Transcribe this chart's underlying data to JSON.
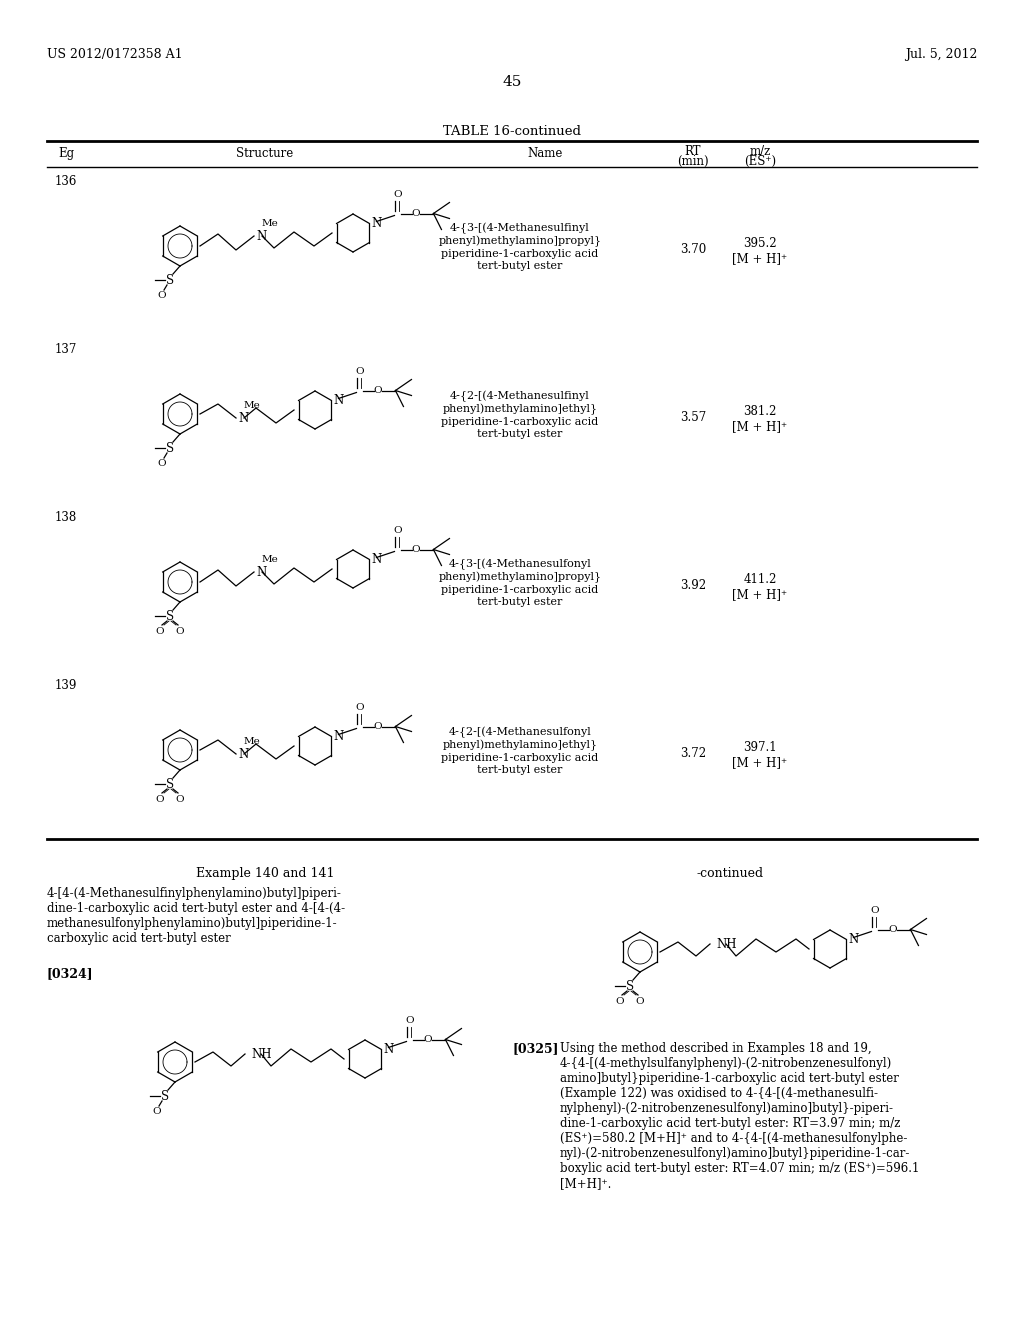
{
  "page_header_left": "US 2012/0172358 A1",
  "page_header_right": "Jul. 5, 2012",
  "page_number": "45",
  "table_title": "TABLE 16-continued",
  "rows": [
    {
      "eg": "136",
      "name": "4-{3-[(4-Methanesulfinyl\nphenyl)methylamino]propyl}\npiperidine-1-carboxylic acid\ntert-butyl ester",
      "rt": "3.70",
      "mz": "395.2\n[M + H]⁺",
      "sulfonyl": false,
      "chain": "propyl"
    },
    {
      "eg": "137",
      "name": "4-{2-[(4-Methanesulfinyl\nphenyl)methylamino]ethyl}\npiperidine-1-carboxylic acid\ntert-butyl ester",
      "rt": "3.57",
      "mz": "381.2\n[M + H]⁺",
      "sulfonyl": false,
      "chain": "ethyl"
    },
    {
      "eg": "138",
      "name": "4-{3-[(4-Methanesulfonyl\nphenyl)methylamino]propyl}\npiperidine-1-carboxylic acid\ntert-butyl ester",
      "rt": "3.92",
      "mz": "411.2\n[M + H]⁺",
      "sulfonyl": true,
      "chain": "propyl"
    },
    {
      "eg": "139",
      "name": "4-{2-[(4-Methanesulfonyl\nphenyl)methylamino]ethyl}\npiperidine-1-carboxylic acid\ntert-butyl ester",
      "rt": "3.72",
      "mz": "397.1\n[M + H]⁺",
      "sulfonyl": true,
      "chain": "ethyl"
    }
  ],
  "example_section_title": "Example 140 and 141",
  "example_compound_name": "4-[4-(4-Methanesulfinylphenylamino)butyl]piperi-\ndine-1-carboxylic acid tert-butyl ester and 4-[4-(4-\nmethanesulfonylphenylamino)butyl]piperidine-1-\ncarboxylic acid tert-butyl ester",
  "continued_label": "-continued",
  "paragraph_0324": "[0324]",
  "paragraph_0325_label": "[0325]",
  "paragraph_0325_text": "Using the method described in Examples 18 and 19,\n4-{4-[(4-methylsulfanylphenyl)-(2-nitrobenzenesulfonyl)\namino]butyl}piperidine-1-carboxylic acid tert-butyl ester\n(Example 122) was oxidised to 4-{4-[(4-methanesulfi-\nnylphenyl)-(2-nitrobenzenesulfonyl)amino]butyl}-piperi-\ndine-1-carboxylic acid tert-butyl ester: RT=3.97 min; m/z\n(ES⁺)=580.2 [M+H]⁺ and to 4-{4-[(4-methanesulfonylphe-\nnyl)-(2-nitrobenzenesulfonyl)amino]butyl}piperidine-1-car-\nboxylic acid tert-butyl ester: RT=4.07 min; m/z (ES⁺)=596.1\n[M+H]⁺.",
  "bg_color": "#ffffff",
  "text_color": "#000000"
}
